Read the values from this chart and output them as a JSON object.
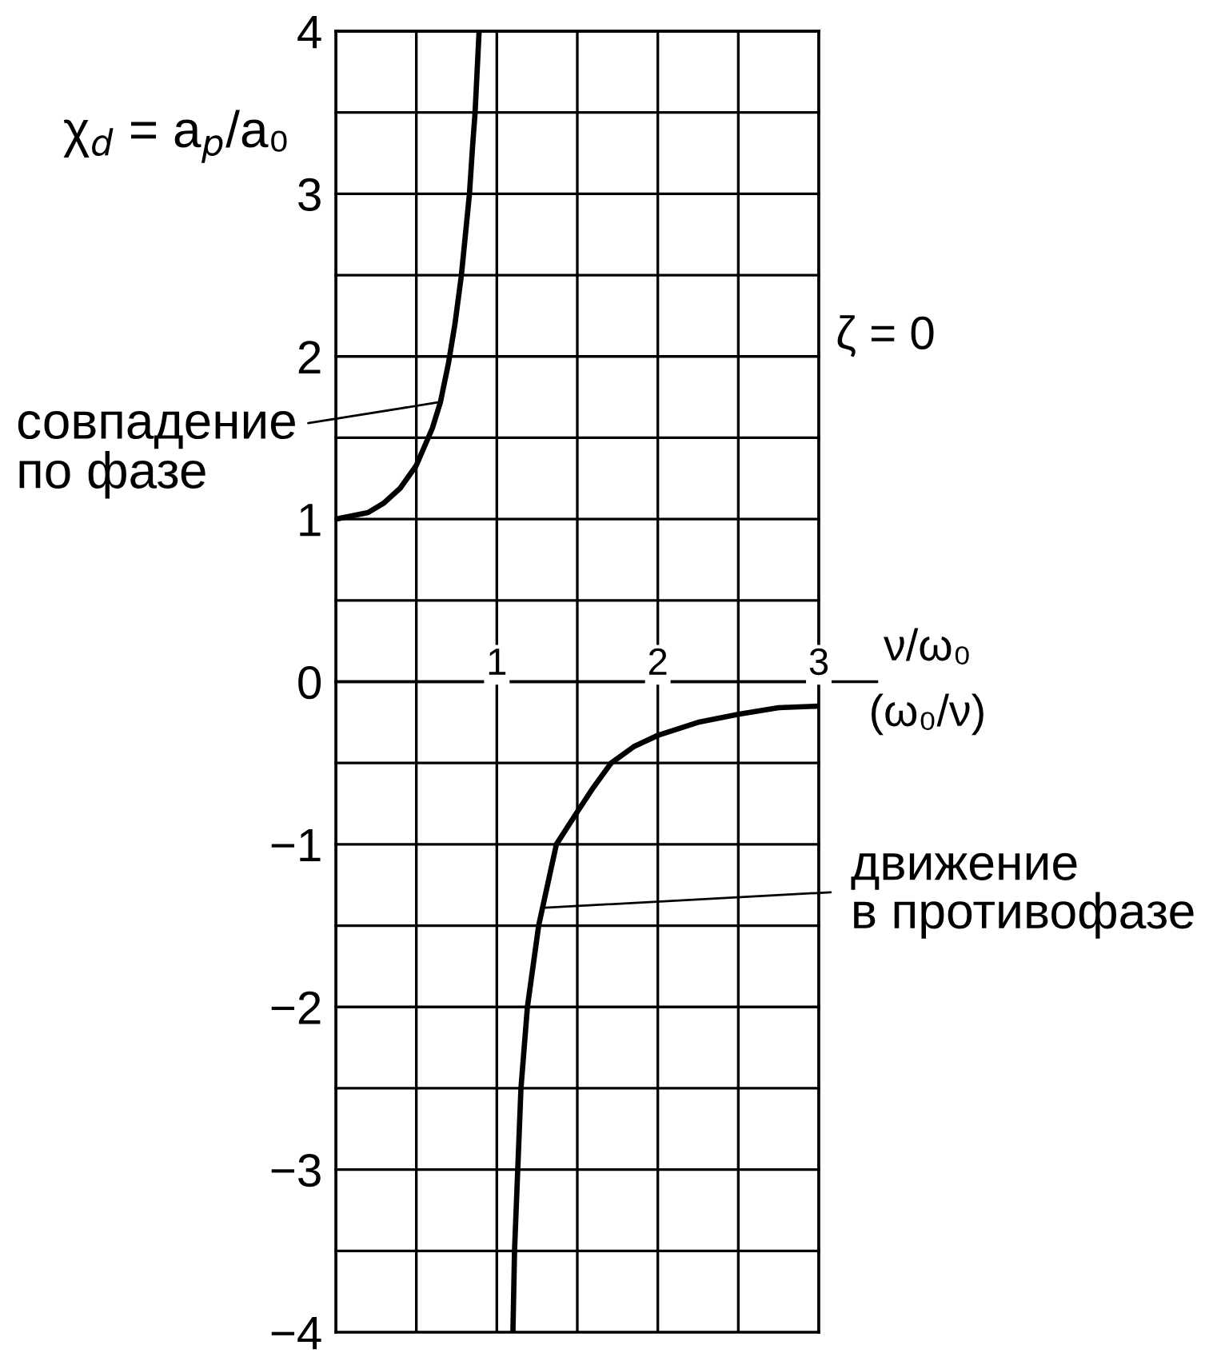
{
  "chart_data": {
    "type": "line",
    "xlabel": "ν/ω₀\n(ω₀/ν)",
    "ylabel": "χ$_{d}$ = a$_{p}$/a₀",
    "annotations": [
      {
        "text": "совпадение\nпо фазе",
        "x": 0.65,
        "y": 1.72
      },
      {
        "text": "движение\nв противофазе",
        "x": 1.3,
        "y": -1.39
      },
      "ζ = 0"
    ],
    "series": [
      {
        "color": "#000000",
        "x": [
          0,
          0.2,
          0.3,
          0.4,
          0.5,
          0.6,
          0.65,
          0.7,
          0.74,
          0.78,
          0.81,
          0.83,
          0.85,
          0.865,
          0.88,
          0.89,
          1.0,
          1.1,
          1.11,
          1.13,
          1.15,
          1.19,
          1.26,
          1.37,
          1.5,
          1.6,
          1.71,
          1.85,
          2.0,
          2.25,
          2.5,
          2.75,
          3.0
        ],
        "values": [
          1.0,
          1.04,
          1.1,
          1.19,
          1.33,
          1.56,
          1.72,
          1.96,
          2.2,
          2.5,
          2.8,
          3.0,
          3.3,
          3.5,
          3.8,
          4.0,
          null,
          -4.0,
          -3.5,
          -3.0,
          -2.5,
          -2.0,
          -1.5,
          -1.0,
          -0.8,
          -0.65,
          -0.5,
          -0.4,
          -0.33,
          -0.25,
          -0.2,
          -0.16,
          -0.15
        ]
      }
    ],
    "xlim": [
      0,
      3
    ],
    "ylim": [
      -4,
      4
    ],
    "xticks": [
      {
        "value": 0,
        "label": null
      },
      {
        "value": 0.5,
        "label": null
      },
      1,
      {
        "value": 1.5,
        "label": null
      },
      2,
      {
        "value": 2.5,
        "label": null
      },
      3
    ],
    "yticks": [
      {
        "value": -4,
        "label": "−4"
      },
      {
        "value": -3.5,
        "label": null
      },
      {
        "value": -3,
        "label": "−3"
      },
      {
        "value": -2.5,
        "label": null
      },
      {
        "value": -2,
        "label": "−2"
      },
      {
        "value": -1.5,
        "label": null
      },
      {
        "value": -1,
        "label": "−1"
      },
      {
        "value": -0.5,
        "label": null
      },
      0,
      {
        "value": 0.5,
        "label": null
      },
      1,
      {
        "value": 1.5,
        "label": null
      },
      2,
      {
        "value": 2.5,
        "label": null
      },
      3,
      {
        "value": 3.5,
        "label": null
      },
      4
    ],
    "grid": true,
    "marker": "none",
    "line_style": "solid"
  }
}
